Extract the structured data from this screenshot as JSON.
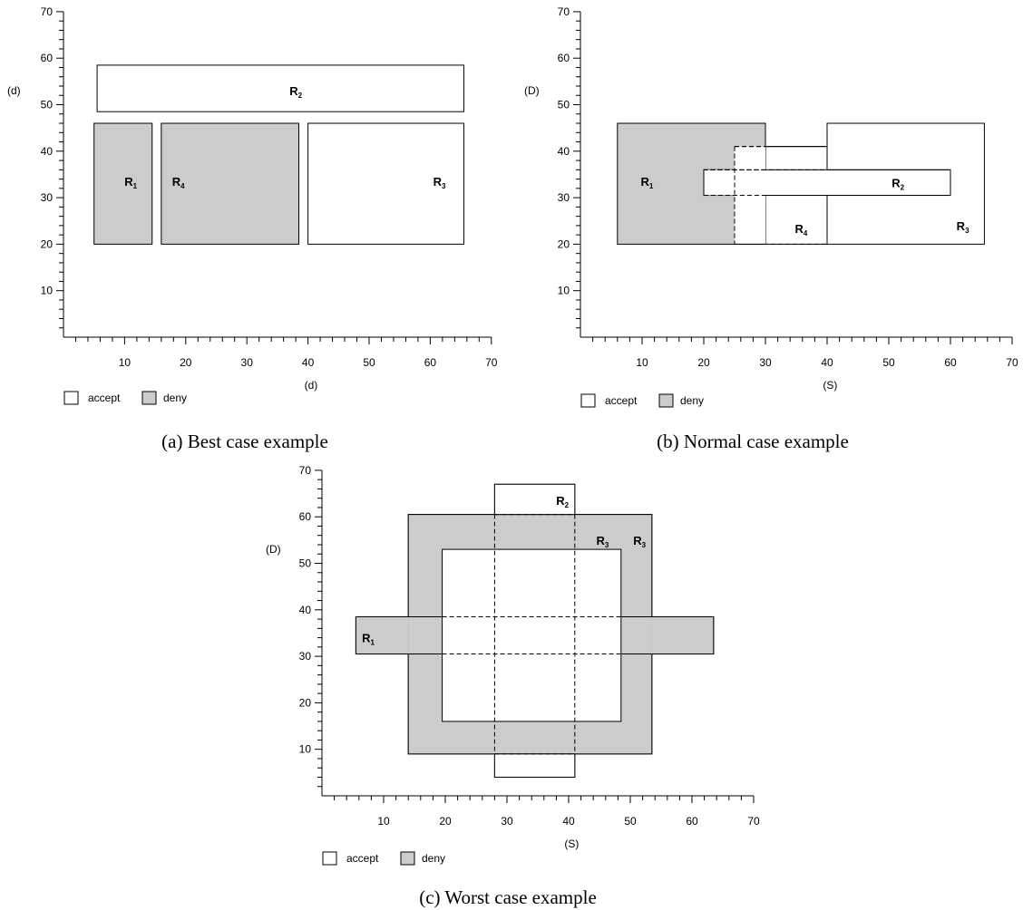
{
  "colors": {
    "accept": "#ffffff",
    "deny": "#cccccc",
    "stroke": "#000000"
  },
  "legend": {
    "accept": "accept",
    "deny": "deny"
  },
  "ticks": [
    "10",
    "20",
    "30",
    "40",
    "50",
    "60",
    "70"
  ],
  "panels": [
    {
      "id": "a",
      "caption": "(a)  Best case example",
      "xlabel": "(d)",
      "ylabel": "(d)",
      "rules": [
        {
          "name": "R",
          "sub": "2",
          "decision": "accept",
          "x": [
            5.5,
            65.5
          ],
          "y": [
            48.5,
            58.5
          ],
          "label_at": [
            38,
            53
          ]
        },
        {
          "name": "R",
          "sub": "1",
          "decision": "deny",
          "x": [
            5,
            14.5
          ],
          "y": [
            20,
            46
          ],
          "label_at": [
            11,
            33.5
          ]
        },
        {
          "name": "R",
          "sub": "4",
          "decision": "deny",
          "x": [
            16,
            38.5
          ],
          "y": [
            20,
            46
          ],
          "label_at": [
            18.8,
            33.5
          ]
        },
        {
          "name": "R",
          "sub": "3",
          "decision": "accept",
          "x": [
            40,
            65.5
          ],
          "y": [
            20,
            46
          ],
          "label_at": [
            61.5,
            33.5
          ]
        }
      ]
    },
    {
      "id": "b",
      "caption": "(b)  Normal case example",
      "xlabel": "(S)",
      "ylabel": "(D)",
      "rules": [
        {
          "name": "R",
          "sub": "3",
          "decision": "accept",
          "x": [
            40,
            65.5
          ],
          "y": [
            20,
            46
          ],
          "label_at": [
            62,
            24
          ]
        },
        {
          "name": "R",
          "sub": "4",
          "decision": "accept",
          "x": [
            25,
            40
          ],
          "y": [
            20,
            41
          ],
          "label_at": [
            35.8,
            23.4
          ]
        },
        {
          "name": "R",
          "sub": "1",
          "decision": "deny",
          "x": [
            6,
            30
          ],
          "y": [
            20,
            46
          ],
          "label_at": [
            10.8,
            33.5
          ]
        },
        {
          "name": "R",
          "sub": "2",
          "decision": "accept",
          "x": [
            20,
            60
          ],
          "y": [
            30.5,
            36
          ],
          "label_at": [
            51.5,
            33.2
          ]
        }
      ]
    },
    {
      "id": "c",
      "caption": "(c)  Worst case example",
      "xlabel": "(S)",
      "ylabel": "(D)",
      "rules": [
        {
          "name": "R",
          "sub": "2",
          "decision": "accept",
          "x": [
            28,
            41
          ],
          "y": [
            4,
            67
          ],
          "label_at": [
            39,
            63.5
          ]
        },
        {
          "name": "R",
          "sub": "3",
          "decision": "deny",
          "x": [
            14,
            53.5
          ],
          "y": [
            9,
            60.5
          ],
          "label_at": [
            51.5,
            55
          ]
        },
        {
          "name": "R",
          "sub": "1",
          "decision": "deny",
          "x": [
            5.5,
            63.5
          ],
          "y": [
            30.5,
            38.5
          ],
          "label_at": [
            7.5,
            34
          ]
        },
        {
          "name": "R",
          "sub": "3",
          "decision": "accept",
          "x": [
            19.5,
            48.5
          ],
          "y": [
            16,
            53
          ],
          "label_at": [
            45.5,
            55
          ]
        }
      ]
    }
  ]
}
